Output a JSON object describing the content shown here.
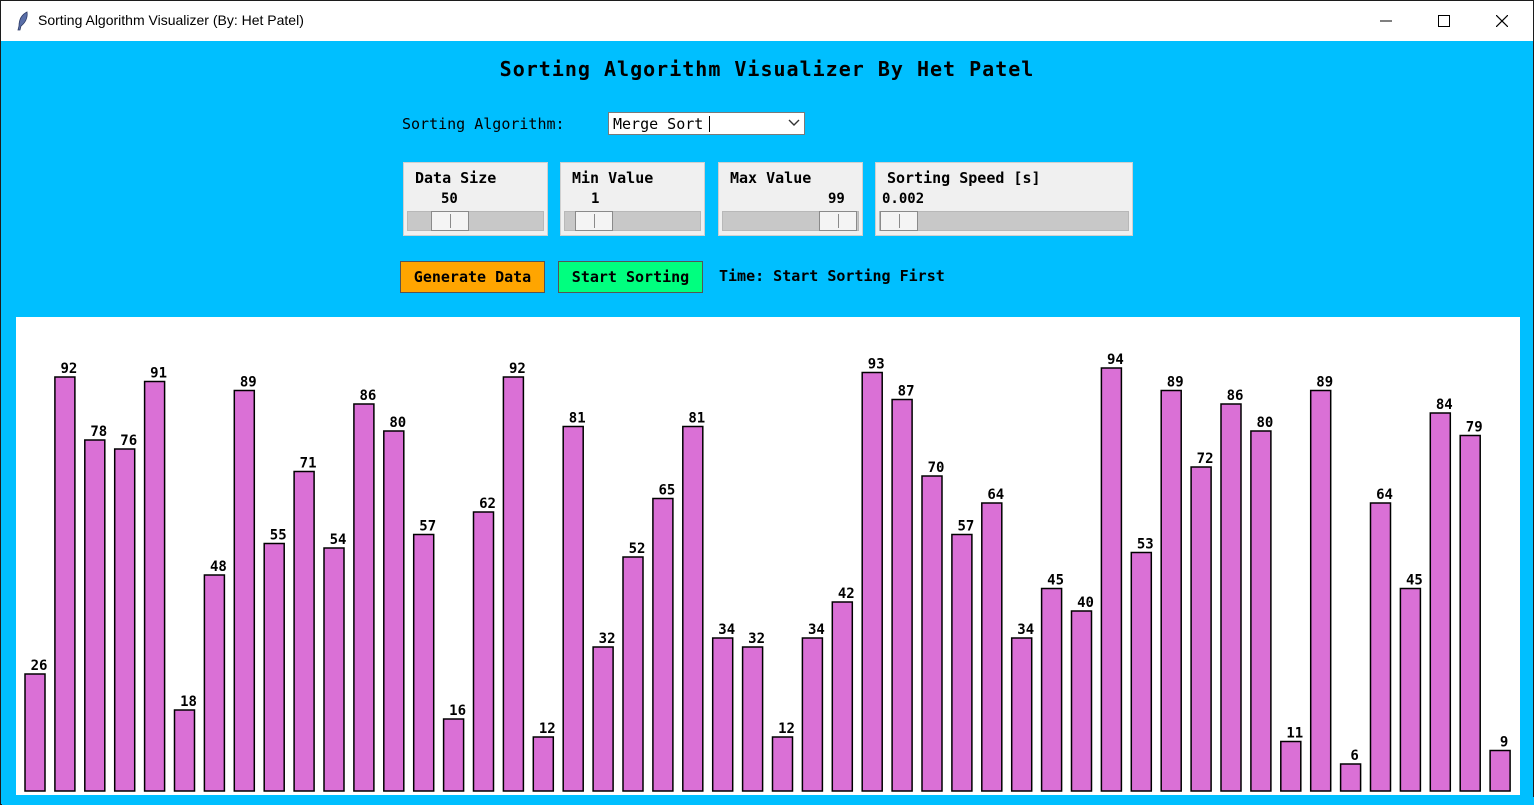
{
  "window": {
    "title": "Sorting Algorithm Visualizer (By: Het Patel)"
  },
  "heading": "Sorting Algorithm Visualizer By Het Patel",
  "algorithm": {
    "label": "Sorting Algorithm:",
    "selected": "Merge Sort"
  },
  "controls": {
    "data_size": {
      "label": "Data Size",
      "value": "50"
    },
    "min_value": {
      "label": "Min Value",
      "value": "1"
    },
    "max_value": {
      "label": "Max Value",
      "value": "99"
    },
    "sorting_speed": {
      "label": "Sorting Speed [s]",
      "value": "0.002"
    }
  },
  "buttons": {
    "generate": "Generate Data",
    "start": "Start Sorting"
  },
  "time_text": "Time: Start Sorting First",
  "colors": {
    "background": "#00bfff",
    "bar": "#da70d6",
    "generate_button": "#ffa500",
    "start_button": "#00ff7f"
  },
  "chart_data": {
    "type": "bar",
    "values": [
      26,
      92,
      78,
      76,
      91,
      18,
      48,
      89,
      55,
      71,
      54,
      86,
      80,
      57,
      16,
      62,
      92,
      12,
      81,
      32,
      52,
      65,
      81,
      34,
      32,
      12,
      34,
      42,
      93,
      87,
      70,
      57,
      64,
      34,
      45,
      40,
      94,
      53,
      89,
      72,
      86,
      80,
      11,
      89,
      6,
      64,
      45,
      84,
      79,
      9
    ]
  }
}
